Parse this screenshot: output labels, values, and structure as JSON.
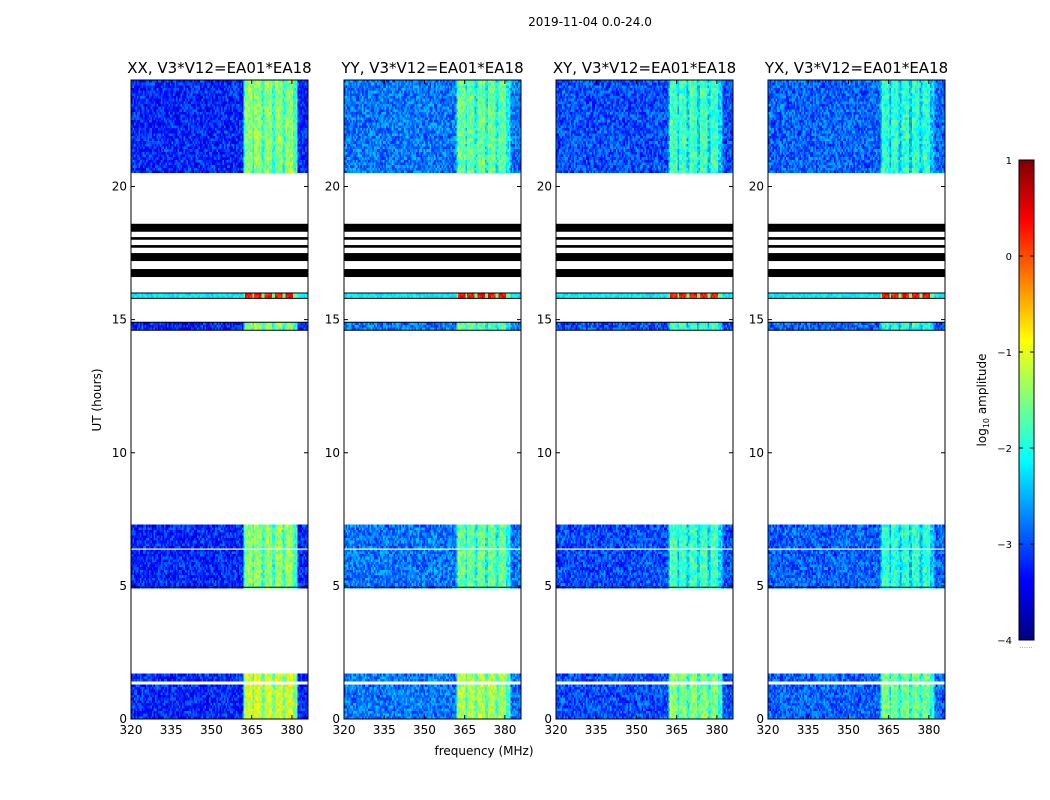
{
  "figure": {
    "suptitle": "2019-11-04 0.0-24.0",
    "xlabel": "frequency (MHz)",
    "ylabel": "UT (hours)",
    "colorbar": {
      "label": "log10 amplitude",
      "label_base": "log",
      "label_sub": "10",
      "label_rest": " amplitude",
      "range": [
        -4,
        1
      ],
      "ticks": [
        1,
        0,
        -1,
        -2,
        -3,
        -4
      ],
      "tick_labels": [
        "1",
        "0",
        "−1",
        "−2",
        "−3",
        "−4"
      ],
      "colormap": [
        "#00007f",
        "#0000ff",
        "#007fff",
        "#00ffff",
        "#7fff7f",
        "#ffff00",
        "#ff7f00",
        "#ff0000",
        "#7f0000"
      ],
      "footnote": "......"
    }
  },
  "chart_data": [
    {
      "type": "heatmap",
      "title": "XX, V3*V12=EA01*EA18",
      "polarization": "XX"
    },
    {
      "type": "heatmap",
      "title": "YY, V3*V12=EA01*EA18",
      "polarization": "YY"
    },
    {
      "type": "heatmap",
      "title": "XY, V3*V12=EA01*EA18",
      "polarization": "XY"
    },
    {
      "type": "heatmap",
      "title": "YX, V3*V12=EA01*EA18",
      "polarization": "YX"
    }
  ],
  "axes": {
    "xlim": [
      320,
      386
    ],
    "ylim": [
      0,
      24
    ],
    "xticks": [
      320,
      335,
      350,
      365,
      380
    ],
    "xtick_labels": [
      "320",
      "335",
      "350",
      "365",
      "380"
    ],
    "yticks": [
      0,
      5,
      10,
      15,
      20
    ],
    "ytick_labels": [
      "0",
      "5",
      "10",
      "15",
      "20"
    ]
  },
  "observations": {
    "data_blocks_ut": [
      [
        0.0,
        1.3
      ],
      [
        1.4,
        1.7
      ],
      [
        4.95,
        6.35
      ],
      [
        6.4,
        7.25
      ],
      [
        14.6,
        14.9
      ],
      [
        15.8,
        16.0
      ],
      [
        20.5,
        24.0
      ]
    ],
    "black_bands_ut": [
      [
        16.6,
        16.9
      ],
      [
        17.2,
        17.5
      ],
      [
        18.3,
        18.6
      ],
      [
        17.7,
        17.8
      ],
      [
        18.0,
        18.1
      ]
    ],
    "rfi_freq_band_mhz": [
      362,
      382
    ],
    "rfi_columns_mhz": [
      364,
      367,
      371,
      375,
      379
    ],
    "background_level": [
      -3.2,
      -2.8,
      -3.0,
      -2.9
    ],
    "rfi_level": [
      -1.4,
      -1.6,
      -1.8,
      -1.9
    ],
    "strong_rfi_level": [
      0.3,
      0.3,
      0.3,
      0.3
    ]
  }
}
